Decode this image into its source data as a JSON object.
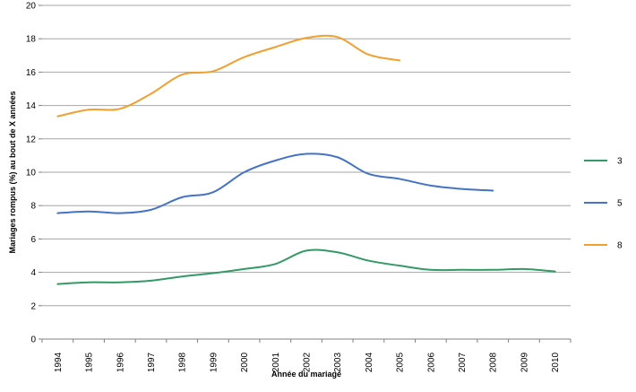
{
  "chart_data": {
    "type": "line",
    "title": "",
    "xlabel": "Année du mariage",
    "ylabel": "Mariages rompus (%) au bout de X années",
    "ylim": [
      0,
      20
    ],
    "yticks": [
      0,
      2,
      4,
      6,
      8,
      10,
      12,
      14,
      16,
      18,
      20
    ],
    "grid": true,
    "legend_position": "right",
    "categories": [
      "1994",
      "1995",
      "1996",
      "1997",
      "1998",
      "1999",
      "2000",
      "2001",
      "2002",
      "2003",
      "2004",
      "2005",
      "2006",
      "2007",
      "2008",
      "2009",
      "2010"
    ],
    "series": [
      {
        "name": "3",
        "color": "#339966",
        "values": [
          3.3,
          3.4,
          3.4,
          3.5,
          3.75,
          3.95,
          4.2,
          4.5,
          5.3,
          5.2,
          4.7,
          4.4,
          4.15,
          4.15,
          4.15,
          4.2,
          4.05
        ]
      },
      {
        "name": "5",
        "color": "#4472c4",
        "values": [
          7.55,
          7.65,
          7.55,
          7.75,
          8.5,
          8.8,
          10.0,
          10.7,
          11.1,
          10.9,
          9.9,
          9.6,
          9.2,
          9.0,
          8.9,
          null,
          null
        ]
      },
      {
        "name": "8",
        "color": "#f0a030",
        "values": [
          13.35,
          13.75,
          13.8,
          14.7,
          15.85,
          16.05,
          16.9,
          17.5,
          18.05,
          18.1,
          17.05,
          16.7,
          null,
          null,
          null,
          null,
          null
        ]
      }
    ]
  }
}
